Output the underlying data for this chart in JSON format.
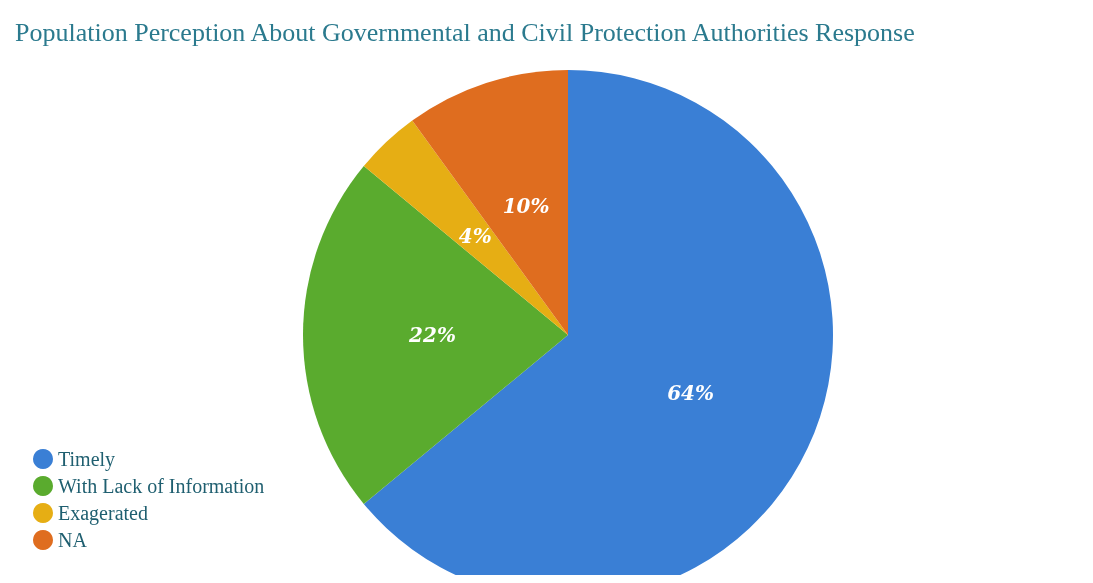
{
  "chart_data": {
    "type": "pie",
    "title": "Population Perception About Governmental and Civil Protection Authorities Response",
    "categories": [
      "Timely",
      "With Lack of Information",
      "Exagerated",
      "NA"
    ],
    "values": [
      64,
      22,
      4,
      10
    ],
    "colors": [
      "#3a7fd5",
      "#5aab2e",
      "#e6ae14",
      "#df6d1f"
    ],
    "value_labels": [
      "64%",
      "22%",
      "4%",
      "10%"
    ],
    "legend": "bottom left"
  }
}
